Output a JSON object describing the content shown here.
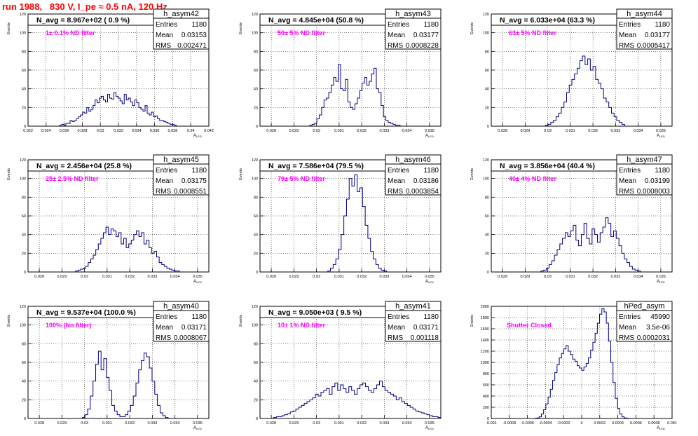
{
  "title": "run 1988,   830 V, I_pe ≈ 0.5 nA, 120 Hz",
  "stats_labels": {
    "entries": "Entries",
    "mean": "Mean",
    "rms": "RMS"
  },
  "y_axis_label": "Events",
  "x_axis_label": "A",
  "x_axis_sub": "LED",
  "colors": {
    "hist": "#000080",
    "annotation": "#ff00ff",
    "title": "#ff0000",
    "frame": "#000000",
    "grid": "#000000"
  },
  "chart_data": [
    {
      "type": "histogram",
      "name": "h_asym42",
      "header": "N_avg = 8.967e+02 ( 0.9 %)",
      "annotation": "1± 0.1% ND filter",
      "entries": "1180",
      "mean": "0.03153",
      "rms": "0.002471",
      "xlim": [
        0.022,
        0.042
      ],
      "ylim": [
        0,
        120
      ],
      "xticks": [
        0.022,
        0.024,
        0.026,
        0.028,
        0.03,
        0.032,
        0.034,
        0.036,
        0.038,
        0.04,
        0.042
      ],
      "xtick_labels": [
        "0.022",
        "0.024",
        "0.026",
        "0.028",
        "0.03",
        "0.032",
        "0.034",
        "0.036",
        "0.038",
        "0.04",
        "0.042"
      ],
      "yticks": [
        0,
        20,
        40,
        60,
        80,
        100,
        120
      ],
      "ytick_labels": [
        "0",
        "20",
        "40",
        "60",
        "80",
        "100",
        "120"
      ],
      "bin_edges": [
        0.0255,
        0.0384
      ],
      "values": [
        1,
        2,
        1,
        3,
        3,
        6,
        5,
        6,
        8,
        10,
        12,
        15,
        14,
        20,
        16,
        18,
        22,
        28,
        25,
        30,
        32,
        28,
        26,
        34,
        30,
        29,
        36,
        32,
        30,
        27,
        24,
        34,
        28,
        30,
        26,
        22,
        28,
        25,
        20,
        18,
        16,
        22,
        14,
        12,
        15,
        10,
        11,
        8,
        6,
        6,
        5,
        4,
        3,
        2,
        2,
        1
      ]
    },
    {
      "type": "histogram",
      "name": "h_asym43",
      "header": "N_avg = 4.845e+04 (50.8 %)",
      "annotation": "50± 5% ND filter",
      "entries": "1180",
      "mean": "0.03177",
      "rms": "0.0008228",
      "xlim": [
        0.0275,
        0.0355
      ],
      "ylim": [
        0,
        120
      ],
      "xticks": [
        0.028,
        0.029,
        0.03,
        0.031,
        0.032,
        0.033,
        0.034,
        0.035
      ],
      "xtick_labels": [
        "0.028",
        "0.029",
        "0.03",
        "0.031",
        "0.032",
        "0.033",
        "0.034",
        "0.035"
      ],
      "yticks": [
        0,
        20,
        40,
        60,
        80,
        100,
        120
      ],
      "ytick_labels": [
        "0",
        "20",
        "40",
        "60",
        "80",
        "100",
        "120"
      ],
      "bin_edges": [
        0.0297,
        0.0337
      ],
      "values": [
        1,
        2,
        3,
        8,
        12,
        20,
        28,
        30,
        36,
        44,
        52,
        48,
        66,
        40,
        38,
        50,
        26,
        20,
        18,
        24,
        30,
        38,
        46,
        52,
        44,
        48,
        56,
        62,
        40,
        36,
        22,
        10,
        6,
        4,
        3,
        2,
        1,
        1
      ]
    },
    {
      "type": "histogram",
      "name": "h_asym44",
      "header": "N_avg = 6.033e+04 (63.3 %)",
      "annotation": "63± 5% ND filter",
      "entries": "1180",
      "mean": "0.03177",
      "rms": "0.0005417",
      "xlim": [
        0.0275,
        0.0355
      ],
      "ylim": [
        0,
        120
      ],
      "xticks": [
        0.028,
        0.029,
        0.03,
        0.031,
        0.032,
        0.033,
        0.034,
        0.035
      ],
      "xtick_labels": [
        "0.028",
        "0.029",
        "0.03",
        "0.031",
        "0.032",
        "0.033",
        "0.034",
        "0.035"
      ],
      "yticks": [
        0,
        20,
        40,
        60,
        80,
        100,
        120
      ],
      "ytick_labels": [
        "0",
        "20",
        "40",
        "60",
        "80",
        "100",
        "120"
      ],
      "bin_edges": [
        0.0299,
        0.0334
      ],
      "values": [
        1,
        2,
        4,
        6,
        10,
        14,
        20,
        26,
        36,
        44,
        50,
        56,
        62,
        70,
        75,
        66,
        72,
        60,
        64,
        50,
        46,
        40,
        30,
        26,
        20,
        14,
        10,
        6,
        4,
        2
      ]
    },
    {
      "type": "histogram",
      "name": "h_asym45",
      "header": "N_avg = 2.456e+04 (25.8 %)",
      "annotation": "25± 2.5% ND filter",
      "entries": "1180",
      "mean": "0.03175",
      "rms": "0.0008551",
      "xlim": [
        0.0275,
        0.0355
      ],
      "ylim": [
        0,
        120
      ],
      "xticks": [
        0.028,
        0.029,
        0.03,
        0.031,
        0.032,
        0.033,
        0.034,
        0.035
      ],
      "xtick_labels": [
        "0.028",
        "0.029",
        "0.03",
        "0.031",
        "0.032",
        "0.033",
        "0.034",
        "0.035"
      ],
      "yticks": [
        0,
        20,
        40,
        60,
        80,
        100,
        120
      ],
      "ytick_labels": [
        "0",
        "20",
        "40",
        "60",
        "80",
        "100",
        "120"
      ],
      "bin_edges": [
        0.0296,
        0.0342
      ],
      "values": [
        1,
        2,
        3,
        4,
        6,
        10,
        14,
        18,
        24,
        30,
        36,
        42,
        48,
        40,
        46,
        44,
        38,
        42,
        30,
        36,
        26,
        30,
        34,
        40,
        44,
        38,
        42,
        30,
        34,
        26,
        20,
        22,
        16,
        10,
        8,
        6,
        4,
        3,
        2,
        1,
        1
      ]
    },
    {
      "type": "histogram",
      "name": "h_asym46",
      "header": "N_avg = 7.586e+04 (79.5 %)",
      "annotation": "79± 5% ND filter",
      "entries": "1180",
      "mean": "0.03186",
      "rms": "0.0003854",
      "xlim": [
        0.0275,
        0.0355
      ],
      "ylim": [
        0,
        120
      ],
      "xticks": [
        0.028,
        0.029,
        0.03,
        0.031,
        0.032,
        0.033,
        0.034,
        0.035
      ],
      "xtick_labels": [
        "0.028",
        "0.029",
        "0.03",
        "0.031",
        "0.032",
        "0.033",
        "0.034",
        "0.035"
      ],
      "yticks": [
        0,
        20,
        40,
        60,
        80,
        100,
        120
      ],
      "ytick_labels": [
        "0",
        "20",
        "40",
        "60",
        "80",
        "100",
        "120"
      ],
      "bin_edges": [
        0.0305,
        0.0331
      ],
      "values": [
        1,
        4,
        8,
        14,
        24,
        40,
        60,
        78,
        100,
        92,
        104,
        86,
        90,
        70,
        50,
        36,
        22,
        14,
        8,
        4,
        2,
        1
      ]
    },
    {
      "type": "histogram",
      "name": "h_asym47",
      "header": "N_avg = 3.856e+04 (40.4 %)",
      "annotation": "40± 4% ND filter",
      "entries": "1180",
      "mean": "0.03199",
      "rms": "0.0008003",
      "xlim": [
        0.0275,
        0.0355
      ],
      "ylim": [
        0,
        120
      ],
      "xticks": [
        0.028,
        0.029,
        0.03,
        0.031,
        0.032,
        0.033,
        0.034,
        0.035
      ],
      "xtick_labels": [
        "0.028",
        "0.029",
        "0.03",
        "0.031",
        "0.032",
        "0.033",
        "0.034",
        "0.035"
      ],
      "yticks": [
        0,
        20,
        40,
        60,
        80,
        100,
        120
      ],
      "ytick_labels": [
        "0",
        "20",
        "40",
        "60",
        "80",
        "100",
        "120"
      ],
      "bin_edges": [
        0.0297,
        0.0341
      ],
      "values": [
        1,
        2,
        4,
        8,
        12,
        18,
        24,
        30,
        36,
        42,
        38,
        44,
        50,
        34,
        28,
        40,
        52,
        36,
        30,
        46,
        40,
        32,
        42,
        48,
        58,
        52,
        38,
        44,
        36,
        28,
        20,
        14,
        10,
        6,
        3,
        2,
        1
      ]
    },
    {
      "type": "histogram",
      "name": "h_asym40",
      "header": "N_avg = 9.537e+04 (100.0 %)",
      "annotation": "100% (No filter)",
      "entries": "1180",
      "mean": "0.03171",
      "rms": "0.0008067",
      "xlim": [
        0.0275,
        0.0355
      ],
      "ylim": [
        0,
        120
      ],
      "xticks": [
        0.028,
        0.029,
        0.03,
        0.031,
        0.032,
        0.033,
        0.034,
        0.035
      ],
      "xtick_labels": [
        "0.028",
        "0.029",
        "0.03",
        "0.031",
        "0.032",
        "0.033",
        "0.034",
        "0.035"
      ],
      "yticks": [
        0,
        20,
        40,
        60,
        80,
        100,
        120
      ],
      "ytick_labels": [
        "0",
        "20",
        "40",
        "60",
        "80",
        "100",
        "120"
      ],
      "bin_edges": [
        0.0299,
        0.0337
      ],
      "values": [
        1,
        4,
        10,
        24,
        40,
        58,
        72,
        52,
        64,
        44,
        30,
        14,
        8,
        4,
        2,
        2,
        4,
        8,
        14,
        24,
        38,
        52,
        62,
        70,
        66,
        54,
        40,
        26,
        14,
        6,
        3,
        1
      ]
    },
    {
      "type": "histogram",
      "name": "h_asym41",
      "header": "N_avg = 9.050e+03 ( 9.5 %)",
      "annotation": "10± 1% ND filter",
      "entries": "1180",
      "mean": "0.03171",
      "rms": "0.001118",
      "xlim": [
        0.0275,
        0.0355
      ],
      "ylim": [
        0,
        120
      ],
      "xticks": [
        0.028,
        0.029,
        0.03,
        0.031,
        0.032,
        0.033,
        0.034,
        0.035
      ],
      "xtick_labels": [
        "0.028",
        "0.029",
        "0.03",
        "0.031",
        "0.032",
        "0.033",
        "0.034",
        "0.035"
      ],
      "yticks": [
        0,
        20,
        40,
        60,
        80,
        100,
        120
      ],
      "ytick_labels": [
        "0",
        "20",
        "40",
        "60",
        "80",
        "100",
        "120"
      ],
      "bin_edges": [
        0.0281,
        0.0355
      ],
      "values": [
        1,
        2,
        2,
        3,
        4,
        5,
        7,
        8,
        10,
        12,
        14,
        16,
        18,
        20,
        22,
        26,
        24,
        28,
        30,
        32,
        26,
        34,
        38,
        30,
        36,
        32,
        28,
        34,
        30,
        26,
        32,
        36,
        38,
        34,
        30,
        28,
        32,
        36,
        40,
        34,
        30,
        28,
        26,
        24,
        20,
        22,
        18,
        16,
        14,
        12,
        10,
        8,
        7,
        6,
        5,
        4,
        3,
        2,
        2,
        1
      ]
    },
    {
      "type": "histogram",
      "name": "hPed_asym",
      "header": "",
      "annotation": "Shutter Closed",
      "entries": "45990",
      "mean": "3.5e-06",
      "rms": "0.0002031",
      "xlim": [
        -0.001,
        0.001
      ],
      "ylim": [
        0,
        2000
      ],
      "xticks": [
        -0.001,
        -0.0008,
        -0.0006,
        -0.0004,
        -0.0002,
        0,
        0.0002,
        0.0004,
        0.0006,
        0.0008,
        0.001
      ],
      "xtick_labels": [
        "-0.001",
        "-0.0008",
        "-0.0006",
        "-0.0004",
        "-0.0002",
        "0",
        "0.0002",
        "0.0004",
        "0.0006",
        "0.0008",
        "0.001"
      ],
      "yticks": [
        0,
        200,
        400,
        600,
        800,
        1000,
        1200,
        1400,
        1600,
        1800,
        2000
      ],
      "ytick_labels": [
        "0",
        "200",
        "400",
        "600",
        "800",
        "1000",
        "1200",
        "1400",
        "1600",
        "1800",
        "2000"
      ],
      "bin_edges": [
        -0.00052,
        0.00052
      ],
      "values": [
        4,
        10,
        30,
        80,
        160,
        260,
        380,
        520,
        680,
        820,
        960,
        1080,
        1160,
        1240,
        1300,
        1200,
        1140,
        1060,
        1020,
        940,
        900,
        860,
        920,
        980,
        1080,
        1220,
        1360,
        1520,
        1700,
        1860,
        1960,
        1900,
        1700,
        1380,
        1000,
        640,
        360,
        180,
        80,
        30,
        10,
        4
      ]
    }
  ]
}
